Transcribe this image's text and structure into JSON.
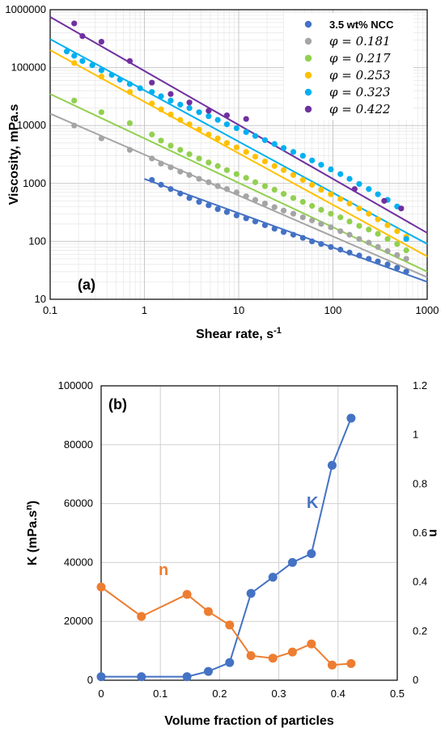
{
  "chart_data": [
    {
      "type": "scatter",
      "panel_label": "(a)",
      "xlabel": "Shear rate, s",
      "xlabel_sup": "-1",
      "ylabel": "Viscosity, mPa.s",
      "xscale": "log",
      "yscale": "log",
      "xlim": [
        0.1,
        1000
      ],
      "ylim": [
        10,
        1000000
      ],
      "x_ticks": [
        "0.1",
        "1",
        "10",
        "100",
        "1000"
      ],
      "y_ticks": [
        "10",
        "100",
        "1000",
        "10000",
        "100000",
        "1000000"
      ],
      "grid": true,
      "legend_position": "top-right",
      "series": [
        {
          "name": "3.5 wt% NCC",
          "color": "#4472C4",
          "fit": {
            "x": [
              1,
              1000
            ],
            "y": [
              1200,
              20
            ]
          },
          "x": [
            1.2,
            1.5,
            1.9,
            2.4,
            3.0,
            3.8,
            4.8,
            6.0,
            7.5,
            9.5,
            12,
            15,
            19,
            24,
            30,
            38,
            48,
            60,
            75,
            95,
            120,
            150,
            190,
            240,
            300,
            380,
            480,
            600
          ],
          "y": [
            1150,
            950,
            800,
            670,
            560,
            480,
            420,
            360,
            320,
            280,
            250,
            220,
            190,
            165,
            145,
            130,
            115,
            100,
            90,
            80,
            72,
            64,
            57,
            50,
            45,
            40,
            35,
            30
          ]
        },
        {
          "name": "φ = 0.181",
          "color": "#A5A5A5",
          "fit": {
            "x": [
              0.1,
              1000
            ],
            "y": [
              16000,
              24
            ]
          },
          "x": [
            0.18,
            0.35,
            0.7,
            1.2,
            1.5,
            1.9,
            2.4,
            3.0,
            3.8,
            4.8,
            6.0,
            7.5,
            9.5,
            12,
            15,
            19,
            24,
            30,
            38,
            48,
            60,
            75,
            95,
            120,
            150,
            190,
            240,
            300,
            380,
            480,
            600
          ],
          "y": [
            10000,
            6000,
            3800,
            2700,
            2200,
            1900,
            1600,
            1400,
            1200,
            1050,
            900,
            800,
            700,
            600,
            520,
            450,
            390,
            340,
            300,
            260,
            230,
            200,
            175,
            150,
            130,
            110,
            95,
            80,
            68,
            58,
            50
          ]
        },
        {
          "name": "φ = 0.217",
          "color": "#92D050",
          "fit": {
            "x": [
              0.1,
              1000
            ],
            "y": [
              35000,
              30
            ]
          },
          "x": [
            0.18,
            0.35,
            0.7,
            1.2,
            1.5,
            1.9,
            2.4,
            3.0,
            3.8,
            4.8,
            6.0,
            7.5,
            9.5,
            12,
            15,
            19,
            24,
            30,
            38,
            48,
            60,
            75,
            95,
            120,
            150,
            190,
            240,
            300,
            380,
            480,
            600
          ],
          "y": [
            27000,
            17000,
            11000,
            7000,
            5500,
            4500,
            3800,
            3200,
            2700,
            2300,
            2000,
            1700,
            1450,
            1250,
            1050,
            900,
            780,
            660,
            560,
            480,
            410,
            350,
            300,
            260,
            220,
            185,
            160,
            135,
            110,
            90,
            70
          ]
        },
        {
          "name": "φ = 0.253",
          "color": "#FFC000",
          "fit": {
            "x": [
              0.1,
              1000
            ],
            "y": [
              200000,
              55
            ]
          },
          "x": [
            0.18,
            0.35,
            0.7,
            1.2,
            1.5,
            1.9,
            2.4,
            3.0,
            3.8,
            4.8,
            6.0,
            7.5,
            9.5,
            12,
            15,
            19,
            24,
            30,
            38,
            48,
            60,
            75,
            95,
            120,
            150,
            190,
            240,
            300,
            380,
            480,
            600
          ],
          "y": [
            120000,
            70000,
            38000,
            24000,
            19000,
            15500,
            12500,
            10500,
            8500,
            7000,
            6000,
            5000,
            4200,
            3500,
            2900,
            2400,
            2000,
            1700,
            1400,
            1150,
            950,
            780,
            650,
            540,
            450,
            370,
            300,
            240,
            190,
            150,
            120
          ]
        },
        {
          "name": "φ = 0.323",
          "color": "#00B0F0",
          "fit": {
            "x": [
              0.1,
              1000
            ],
            "y": [
              310000,
              90
            ]
          },
          "x": [
            0.15,
            0.18,
            0.22,
            0.28,
            0.35,
            0.45,
            0.55,
            0.7,
            0.9,
            1.2,
            1.5,
            1.9,
            2.4,
            3.0,
            3.8,
            4.8,
            6.0,
            7.5,
            9.5,
            12,
            15,
            19,
            24,
            30,
            38,
            48,
            60,
            75,
            95,
            120,
            150,
            190,
            240,
            300,
            380,
            480,
            600
          ],
          "y": [
            190000,
            160000,
            130000,
            110000,
            90000,
            75000,
            62000,
            52000,
            44000,
            38000,
            32000,
            27000,
            23000,
            20000,
            17000,
            14500,
            12500,
            10500,
            9000,
            7700,
            6600,
            5600,
            4800,
            4100,
            3500,
            3000,
            2500,
            2100,
            1750,
            1450,
            1200,
            980,
            800,
            650,
            520,
            400,
            110
          ]
        },
        {
          "name": "φ = 0.422",
          "color": "#7030A0",
          "fit": {
            "x": [
              0.1,
              1000
            ],
            "y": [
              750000,
              140
            ]
          },
          "x": [
            0.18,
            0.22,
            0.35,
            0.7,
            1.2,
            1.9,
            3.0,
            4.8,
            7.5,
            12,
            170,
            350,
            530
          ],
          "y": [
            580000,
            350000,
            280000,
            130000,
            55000,
            35000,
            25000,
            18000,
            15000,
            13000,
            800,
            500,
            370
          ]
        }
      ]
    },
    {
      "type": "line",
      "panel_label": "(b)",
      "xlabel": "Volume fraction of particles",
      "ylabel_left": "K (mPa.s",
      "ylabel_left_sup": "n",
      "ylabel_left_close": ")",
      "ylabel_right": "n",
      "xlim": [
        0,
        0.5
      ],
      "ylim_left": [
        0,
        100000
      ],
      "ylim_right": [
        0,
        1.2
      ],
      "x_ticks": [
        "0",
        "0.1",
        "0.2",
        "0.3",
        "0.4",
        "0.5"
      ],
      "y_left_ticks": [
        "0",
        "20000",
        "40000",
        "60000",
        "80000",
        "100000"
      ],
      "y_right_ticks": [
        "0",
        "0.2",
        "0.4",
        "0.6",
        "0.8",
        "1",
        "1.2"
      ],
      "grid": true,
      "series": [
        {
          "name": "K",
          "axis": "left",
          "color": "#4472C4",
          "x": [
            0,
            0.068,
            0.145,
            0.181,
            0.217,
            0.253,
            0.29,
            0.323,
            0.355,
            0.39,
            0.422
          ],
          "y": [
            1200,
            1200,
            1200,
            3000,
            6000,
            29500,
            35000,
            40000,
            43000,
            73000,
            89000
          ]
        },
        {
          "name": "n",
          "axis": "right",
          "color": "#ED7D31",
          "x": [
            0,
            0.068,
            0.145,
            0.181,
            0.217,
            0.253,
            0.29,
            0.323,
            0.355,
            0.39,
            0.422
          ],
          "y": [
            0.38,
            0.26,
            0.35,
            0.28,
            0.225,
            0.1,
            0.09,
            0.115,
            0.148,
            0.062,
            0.068
          ]
        }
      ]
    }
  ]
}
